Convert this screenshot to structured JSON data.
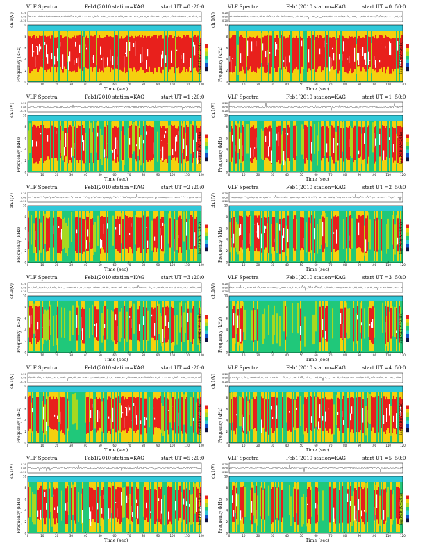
{
  "page": {
    "panels": [
      {
        "title": "VLF Spectra",
        "date": "Feb1(2010",
        "station": "station=KAG",
        "start": "start  UT =0 :20:0"
      },
      {
        "title": "VLF Spectra",
        "date": "Feb1(2010",
        "station": "station=KAG",
        "start": "start  UT =0 :50:0"
      },
      {
        "title": "VLF Spectra",
        "date": "Feb1(2010",
        "station": "station=KAG",
        "start": "start  UT =1 :20:0"
      },
      {
        "title": "VLF Spectra",
        "date": "Feb1(2010",
        "station": "station=KAG",
        "start": "start  UT =1 :50:0"
      },
      {
        "title": "VLF Spectra",
        "date": "Feb1(2010",
        "station": "station=KAG",
        "start": "start  UT =2 :20:0"
      },
      {
        "title": "VLF Spectra",
        "date": "Feb1(2010",
        "station": "station=KAG",
        "start": "start  UT =2 :50:0"
      },
      {
        "title": "VLF Spectra",
        "date": "Feb1(2010",
        "station": "station=KAG",
        "start": "start  UT =3 :20:0"
      },
      {
        "title": "VLF Spectra",
        "date": "Feb1(2010",
        "station": "station=KAG",
        "start": "start  UT =3 :50:0"
      },
      {
        "title": "VLF Spectra",
        "date": "Feb1(2010",
        "station": "station=KAG",
        "start": "start  UT =4 :20:0"
      },
      {
        "title": "VLF Spectra",
        "date": "Feb1(2010",
        "station": "station=KAG",
        "start": "start  UT =4 :50:0"
      },
      {
        "title": "VLF Spectra",
        "date": "Feb1(2010",
        "station": "station=KAG",
        "start": "start  UT =5 :20:0"
      },
      {
        "title": "VLF Spectra",
        "date": "Feb1(2010",
        "station": "station=KAG",
        "start": "start  UT =5 :50:0"
      }
    ]
  },
  "chart_data": {
    "type": "heatmap",
    "description_free": true,
    "xlabel": "Time  (sec)",
    "ylabel": "Frequency  (kHz)",
    "waveform_ylabel": "ch.1(V)",
    "colorbar_label": "log(PSD)(V^2/Hz)",
    "x_ticks": [
      0,
      10,
      20,
      30,
      40,
      50,
      60,
      70,
      80,
      90,
      100,
      110,
      120
    ],
    "y_ticks": [
      0,
      2,
      4,
      6,
      8,
      10
    ],
    "waveform_ticks": [
      "0.20",
      "0.00",
      "-0.20"
    ],
    "xlim": [
      0,
      120
    ],
    "ylim": [
      0,
      10
    ],
    "colors": {
      "high": "#e8201c",
      "mid_high": "#f5d00f",
      "mid": "#a8d820",
      "mid_low": "#20c87a",
      "low": "#30c8d8",
      "very_low": "#1050c8",
      "emission_white": "#ffffff"
    },
    "panels": [
      {
        "ut": "0:20:0",
        "activity": 0.85
      },
      {
        "ut": "0:50:0",
        "activity": 0.85
      },
      {
        "ut": "1:20:0",
        "activity": 0.65
      },
      {
        "ut": "1:50:0",
        "activity": 0.55
      },
      {
        "ut": "2:20:0",
        "activity": 0.5
      },
      {
        "ut": "2:50:0",
        "activity": 0.45
      },
      {
        "ut": "3:20:0",
        "activity": 0.35
      },
      {
        "ut": "3:50:0",
        "activity": 0.3
      },
      {
        "ut": "4:20:0",
        "activity": 0.55
      },
      {
        "ut": "4:50:0",
        "activity": 0.55
      },
      {
        "ut": "5:20:0",
        "activity": 0.5
      },
      {
        "ut": "5:50:0",
        "activity": 0.35
      }
    ]
  }
}
